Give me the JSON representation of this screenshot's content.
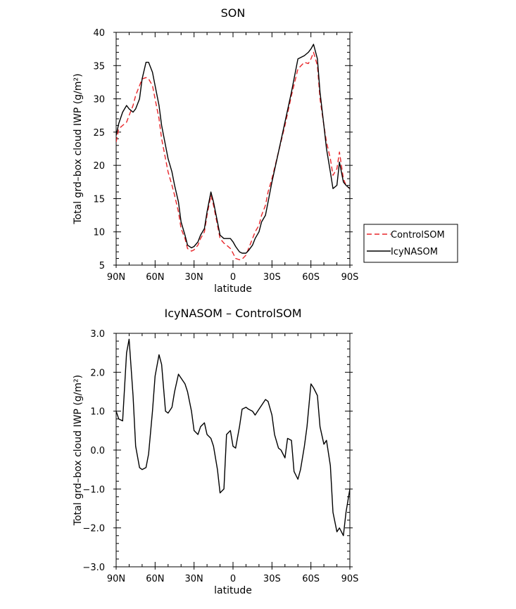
{
  "chart_data": [
    {
      "type": "line",
      "title": "SON",
      "xlabel": "latitude",
      "ylabel": "Total grd–box cloud IWP (g/m²)",
      "x_ticks": [
        {
          "value": 90,
          "label": "90N"
        },
        {
          "value": 60,
          "label": "60N"
        },
        {
          "value": 30,
          "label": "30N"
        },
        {
          "value": 0,
          "label": "0"
        },
        {
          "value": -30,
          "label": "30S"
        },
        {
          "value": -60,
          "label": "60S"
        },
        {
          "value": -90,
          "label": "90S"
        }
      ],
      "xlim": [
        90,
        -90
      ],
      "ylim": [
        5,
        40
      ],
      "y_ticks": [
        5,
        10,
        15,
        20,
        25,
        30,
        35,
        40
      ],
      "y_tick_labels": [
        "5",
        "10",
        "15",
        "20",
        "25",
        "30",
        "35",
        "40"
      ],
      "legend": "right",
      "series": [
        {
          "name": "ControlSOM",
          "color": "#e8262a",
          "dash": "dashed",
          "x": [
            90,
            88,
            85,
            82,
            80,
            77,
            75,
            72,
            70,
            67,
            65,
            62,
            60,
            57,
            55,
            52,
            50,
            47,
            45,
            42,
            40,
            37,
            35,
            32,
            30,
            27,
            25,
            22,
            20,
            17,
            15,
            12,
            10,
            7,
            5,
            2,
            0,
            -2,
            -5,
            -7,
            -10,
            -12,
            -15,
            -17,
            -20,
            -22,
            -25,
            -27,
            -30,
            -35,
            -40,
            -45,
            -50,
            -55,
            -58,
            -60,
            -62,
            -65,
            -67,
            -70,
            -72,
            -75,
            -77,
            -80,
            -82,
            -85,
            -87,
            -90
          ],
          "y": [
            23.5,
            25.5,
            26,
            26.5,
            27.5,
            29,
            30.5,
            32,
            33,
            33.2,
            33,
            32,
            30,
            27,
            24,
            21,
            19,
            17,
            15.5,
            13,
            10.5,
            9,
            7.5,
            7.1,
            7.3,
            8,
            9,
            10,
            12.5,
            15.5,
            14,
            11,
            9,
            8.3,
            8,
            7.5,
            6.8,
            6,
            5.8,
            5.9,
            6.5,
            7.5,
            9,
            10,
            11,
            12.5,
            14,
            16,
            18,
            22,
            26,
            30.5,
            34.5,
            35.5,
            35.3,
            36,
            37,
            35,
            30,
            26,
            23.5,
            21,
            18.5,
            19.5,
            22,
            18,
            17,
            16.5
          ]
        },
        {
          "name": "IcyNASOM",
          "color": "#000000",
          "dash": "solid",
          "x": [
            90,
            88,
            85,
            82,
            80,
            77,
            75,
            72,
            70,
            67,
            65,
            62,
            60,
            57,
            55,
            52,
            50,
            47,
            45,
            42,
            40,
            37,
            35,
            32,
            30,
            27,
            25,
            22,
            20,
            17,
            15,
            12,
            10,
            7,
            5,
            2,
            0,
            -2,
            -5,
            -7,
            -10,
            -12,
            -15,
            -17,
            -20,
            -22,
            -25,
            -27,
            -30,
            -35,
            -40,
            -45,
            -50,
            -55,
            -58,
            -60,
            -62,
            -65,
            -67,
            -70,
            -72,
            -75,
            -77,
            -80,
            -82,
            -85,
            -87,
            -90
          ],
          "y": [
            24.5,
            26.3,
            28,
            29,
            28.5,
            28,
            28.5,
            30,
            33,
            35.5,
            35.5,
            34,
            32,
            29,
            26,
            23,
            21,
            19,
            17,
            14.5,
            11.5,
            9.5,
            8,
            7.6,
            7.8,
            8.5,
            9.5,
            10.5,
            13,
            16,
            14.5,
            11.5,
            9.5,
            9,
            9,
            9,
            8.5,
            7.8,
            7,
            6.8,
            6.8,
            7.2,
            8,
            9,
            10,
            11.5,
            12.5,
            14.5,
            17.5,
            22,
            26.5,
            31,
            36,
            36.5,
            37,
            37.5,
            38.2,
            36,
            31,
            26,
            22.5,
            19,
            16.5,
            17,
            20.5,
            17.5,
            17,
            16.5
          ]
        }
      ]
    },
    {
      "type": "line",
      "title": "IcyNASOM – ControlSOM",
      "xlabel": "latitude",
      "ylabel": "Total grd–box cloud IWP (g/m²)",
      "x_ticks": [
        {
          "value": 90,
          "label": "90N"
        },
        {
          "value": 60,
          "label": "60N"
        },
        {
          "value": 30,
          "label": "30N"
        },
        {
          "value": 0,
          "label": "0"
        },
        {
          "value": -30,
          "label": "30S"
        },
        {
          "value": -60,
          "label": "60S"
        },
        {
          "value": -90,
          "label": "90S"
        }
      ],
      "xlim": [
        90,
        -90
      ],
      "ylim": [
        -3.0,
        3.0
      ],
      "y_ticks": [
        -3,
        -2,
        -1,
        0,
        1,
        2,
        3
      ],
      "y_tick_labels": [
        "−3.0",
        "−2.0",
        "−1.0",
        "0.0",
        "1.0",
        "2.0",
        "3.0"
      ],
      "legend": "none",
      "series": [
        {
          "name": "",
          "color": "#000000",
          "dash": "solid",
          "x": [
            90,
            88,
            85,
            82,
            80,
            77,
            75,
            72,
            70,
            67,
            65,
            62,
            60,
            57,
            55,
            52,
            50,
            47,
            45,
            42,
            40,
            37,
            35,
            32,
            30,
            27,
            25,
            22,
            20,
            17,
            15,
            12,
            10,
            7,
            5,
            2,
            0,
            -2,
            -5,
            -7,
            -10,
            -12,
            -15,
            -17,
            -20,
            -22,
            -25,
            -27,
            -30,
            -32,
            -35,
            -37,
            -40,
            -42,
            -45,
            -47,
            -50,
            -52,
            -55,
            -57,
            -60,
            -62,
            -65,
            -67,
            -70,
            -72,
            -75,
            -77,
            -80,
            -82,
            -85,
            -87,
            -90
          ],
          "y": [
            1.0,
            0.8,
            0.75,
            2.5,
            2.85,
            1.4,
            0.1,
            -0.45,
            -0.5,
            -0.45,
            -0.1,
            1.0,
            1.9,
            2.45,
            2.2,
            1.0,
            0.95,
            1.1,
            1.5,
            1.95,
            1.85,
            1.7,
            1.5,
            1.0,
            0.5,
            0.4,
            0.6,
            0.7,
            0.4,
            0.3,
            0.1,
            -0.5,
            -1.1,
            -1.0,
            0.4,
            0.5,
            0.1,
            0.05,
            0.6,
            1.05,
            1.1,
            1.05,
            1.0,
            0.9,
            1.05,
            1.15,
            1.3,
            1.25,
            0.9,
            0.4,
            0.05,
            0.0,
            -0.2,
            0.3,
            0.25,
            -0.55,
            -0.75,
            -0.5,
            0.1,
            0.6,
            1.7,
            1.6,
            1.4,
            0.6,
            0.15,
            0.25,
            -0.4,
            -1.6,
            -2.1,
            -2.0,
            -2.2,
            -1.6,
            -1.0
          ]
        }
      ]
    }
  ]
}
